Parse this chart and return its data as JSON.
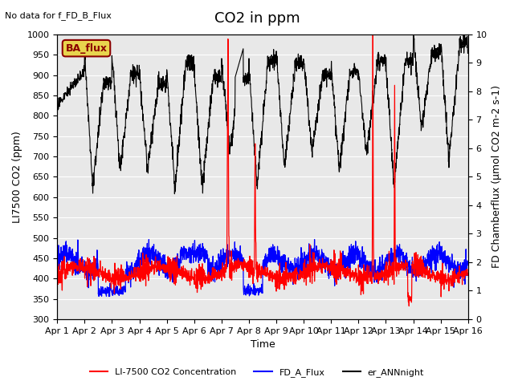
{
  "title": "CO2 in ppm",
  "no_data_text": "No data for f_FD_B_Flux",
  "ba_flux_label": "BA_flux",
  "xlabel": "Time",
  "ylabel_left": "LI7500 CO2 (ppm)",
  "ylabel_right": "FD Chamberflux (μmol CO2 m-2 s-1)",
  "ylim_left": [
    300,
    1000
  ],
  "ylim_right": [
    0.0,
    10.0
  ],
  "xlim": [
    0,
    15
  ],
  "xtick_labels": [
    "Apr 1",
    "Apr 2",
    "Apr 3",
    "Apr 4",
    "Apr 5",
    "Apr 6",
    "Apr 7",
    "Apr 8",
    "Apr 9",
    "Apr 10",
    "Apr 11",
    "Apr 12",
    "Apr 13",
    "Apr 14",
    "Apr 15",
    "Apr 16"
  ],
  "legend_labels": [
    "LI-7500 CO2 Concentration",
    "FD_A_Flux",
    "er_ANNnight"
  ],
  "legend_colors": [
    "red",
    "blue",
    "black"
  ],
  "line_red_color": "red",
  "line_blue_color": "blue",
  "line_black_color": "black",
  "background_color": "#e8e8e8",
  "figure_color": "white",
  "ba_flux_box_color": "#e8d44d",
  "ba_flux_text_color": "#8b0000",
  "title_fontsize": 13,
  "label_fontsize": 9,
  "tick_fontsize": 8
}
